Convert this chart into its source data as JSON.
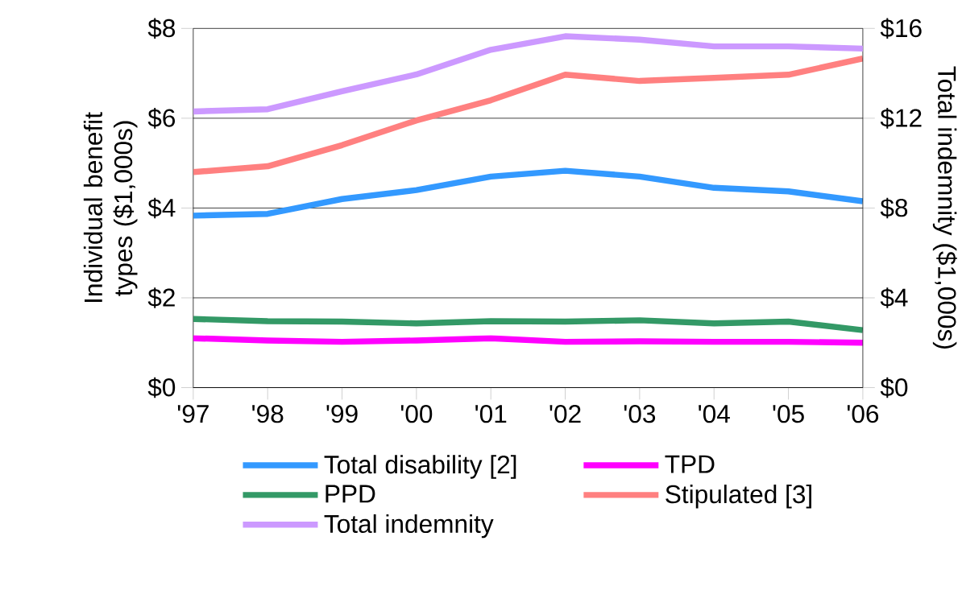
{
  "chart_data": {
    "type": "line",
    "ylabel": "Individual benefit types ($1,000s)",
    "y2label": "Total indemnity ($1,000s)",
    "categories": [
      "'97",
      "'98",
      "'99",
      "'00",
      "'01",
      "'02",
      "'03",
      "'04",
      "'05",
      "'06"
    ],
    "series": [
      {
        "name": "Total disability [2]",
        "color": "#3399ff",
        "values": [
          3.83,
          3.87,
          4.2,
          4.4,
          4.7,
          4.83,
          4.7,
          4.45,
          4.37,
          4.15
        ]
      },
      {
        "name": "TPD",
        "color": "#ff00ff",
        "values": [
          1.1,
          1.05,
          1.02,
          1.05,
          1.1,
          1.02,
          1.03,
          1.02,
          1.02,
          1.0
        ]
      },
      {
        "name": "PPD",
        "color": "#339966",
        "values": [
          1.53,
          1.48,
          1.47,
          1.43,
          1.48,
          1.47,
          1.5,
          1.43,
          1.47,
          1.28
        ]
      },
      {
        "name": "Stipulated [3]",
        "color": "#ff8080",
        "values": [
          4.8,
          4.93,
          5.4,
          5.95,
          6.4,
          6.97,
          6.83,
          6.9,
          6.97,
          7.33
        ]
      },
      {
        "name": "Total indemnity",
        "color": "#cc99ff",
        "axis": "y2",
        "values": [
          12.3,
          12.4,
          13.2,
          13.95,
          15.05,
          15.65,
          15.5,
          15.2,
          15.2,
          15.1
        ]
      }
    ],
    "ylim": [
      0,
      8
    ],
    "yticks": [
      {
        "value": 0,
        "label": "$0"
      },
      {
        "value": 2,
        "label": "$2"
      },
      {
        "value": 4,
        "label": "$4"
      },
      {
        "value": 6,
        "label": "$6"
      },
      {
        "value": 8,
        "label": "$8"
      }
    ],
    "y2lim": [
      0,
      16
    ],
    "y2ticks": [
      {
        "value": 0,
        "label": "$0"
      },
      {
        "value": 4,
        "label": "$4"
      },
      {
        "value": 8,
        "label": "$8"
      },
      {
        "value": 12,
        "label": "$12"
      },
      {
        "value": 16,
        "label": "$16"
      }
    ],
    "grid": "y",
    "legend": "bottom",
    "marker": "none",
    "line_style": "solid"
  }
}
